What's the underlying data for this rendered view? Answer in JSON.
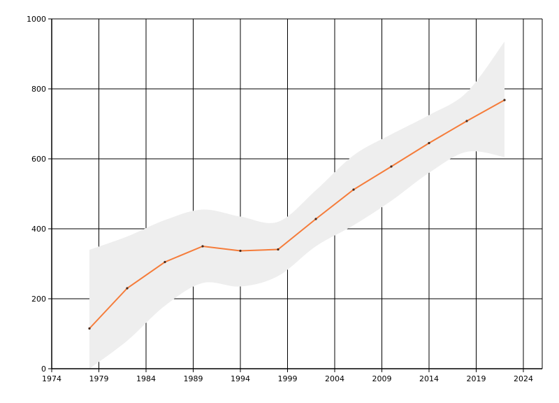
{
  "chart_data": {
    "type": "line",
    "title": "",
    "xlabel": "",
    "ylabel": "",
    "xlim": [
      1974,
      2026
    ],
    "ylim": [
      0,
      1000
    ],
    "x_ticks": [
      1974,
      1979,
      1984,
      1989,
      1994,
      1999,
      2004,
      2009,
      2014,
      2019,
      2024
    ],
    "y_ticks": [
      0,
      200,
      400,
      600,
      800,
      1000
    ],
    "grid": true,
    "colors": {
      "line": "#f57c3a",
      "marker": "#4a2a1a",
      "band": "#eeeeee",
      "grid": "#000000"
    },
    "series": [
      {
        "x": [
          1978,
          1982,
          1986,
          1990,
          1994,
          1998,
          2002,
          2006,
          2010,
          2014,
          2018,
          2022
        ],
        "y": [
          115,
          230,
          305,
          350,
          337,
          341,
          428,
          512,
          578,
          645,
          708,
          768
        ]
      }
    ],
    "band": {
      "x": [
        1978,
        1982,
        1986,
        1990,
        1994,
        1998,
        2002,
        2006,
        2010,
        2014,
        2018,
        2022
      ],
      "upper": [
        340,
        378,
        425,
        455,
        435,
        420,
        510,
        610,
        670,
        725,
        790,
        935
      ],
      "lower": [
        0,
        80,
        180,
        245,
        235,
        265,
        350,
        410,
        480,
        560,
        620,
        605
      ]
    }
  }
}
